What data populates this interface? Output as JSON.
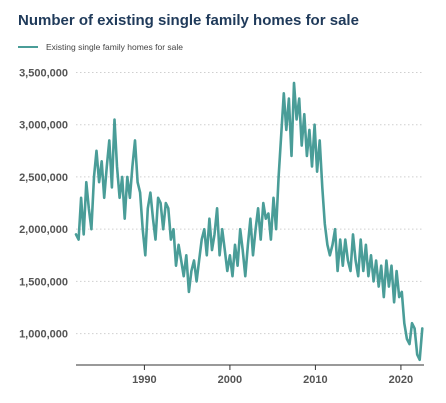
{
  "chart_data": {
    "type": "line",
    "title": "Number of existing single family homes for sale",
    "xlabel": "",
    "ylabel": "",
    "xlim": [
      1982,
      2022.7
    ],
    "ylim": [
      700000,
      3600000
    ],
    "yticks": [
      1000000,
      1500000,
      2000000,
      2500000,
      3000000,
      3500000
    ],
    "ytick_labels": [
      "1,000,000",
      "1,500,000",
      "2,000,000",
      "2,500,000",
      "3,000,000",
      "3,500,000"
    ],
    "xticks": [
      1990,
      2000,
      2010,
      2020
    ],
    "xtick_labels": [
      "1990",
      "2000",
      "2010",
      "2020"
    ],
    "grid": true,
    "legend_position": "top-left",
    "series": [
      {
        "name": "Existing single family homes for sale",
        "color": "#4a9d98",
        "x": [
          1982.0,
          1982.3,
          1982.6,
          1982.9,
          1983.2,
          1983.5,
          1983.8,
          1984.1,
          1984.4,
          1984.7,
          1985.0,
          1985.3,
          1985.6,
          1985.9,
          1986.2,
          1986.5,
          1986.8,
          1987.1,
          1987.4,
          1987.7,
          1988.0,
          1988.3,
          1988.6,
          1988.9,
          1989.2,
          1989.5,
          1989.8,
          1990.1,
          1990.4,
          1990.7,
          1991.0,
          1991.3,
          1991.6,
          1991.9,
          1992.2,
          1992.5,
          1992.8,
          1993.1,
          1993.4,
          1993.7,
          1994.0,
          1994.3,
          1994.6,
          1994.9,
          1995.2,
          1995.5,
          1995.8,
          1996.1,
          1996.4,
          1996.7,
          1997.0,
          1997.3,
          1997.6,
          1997.9,
          1998.2,
          1998.5,
          1998.8,
          1999.1,
          1999.4,
          1999.7,
          2000.0,
          2000.3,
          2000.6,
          2000.9,
          2001.2,
          2001.5,
          2001.8,
          2002.1,
          2002.4,
          2002.7,
          2003.0,
          2003.3,
          2003.6,
          2003.9,
          2004.2,
          2004.5,
          2004.8,
          2005.1,
          2005.4,
          2005.7,
          2006.0,
          2006.3,
          2006.6,
          2006.9,
          2007.2,
          2007.5,
          2007.8,
          2008.1,
          2008.4,
          2008.7,
          2009.0,
          2009.3,
          2009.6,
          2009.9,
          2010.2,
          2010.5,
          2010.8,
          2011.1,
          2011.4,
          2011.7,
          2012.0,
          2012.3,
          2012.6,
          2012.9,
          2013.2,
          2013.5,
          2013.8,
          2014.1,
          2014.4,
          2014.7,
          2015.0,
          2015.3,
          2015.6,
          2015.9,
          2016.2,
          2016.5,
          2016.8,
          2017.1,
          2017.4,
          2017.7,
          2018.0,
          2018.3,
          2018.6,
          2018.9,
          2019.2,
          2019.5,
          2019.8,
          2020.1,
          2020.4,
          2020.7,
          2021.0,
          2021.3,
          2021.6,
          2021.9,
          2022.2,
          2022.5
        ],
        "values": [
          1950000,
          1900000,
          2300000,
          1950000,
          2450000,
          2200000,
          2000000,
          2500000,
          2750000,
          2450000,
          2650000,
          2300000,
          2600000,
          2850000,
          2400000,
          3050000,
          2600000,
          2300000,
          2500000,
          2100000,
          2500000,
          2300000,
          2600000,
          2850000,
          2450000,
          2350000,
          2000000,
          1750000,
          2200000,
          2350000,
          2100000,
          1900000,
          2300000,
          2250000,
          2000000,
          2250000,
          2200000,
          1900000,
          2000000,
          1650000,
          1850000,
          1700000,
          1550000,
          1750000,
          1400000,
          1600000,
          1700000,
          1500000,
          1700000,
          1900000,
          2000000,
          1750000,
          2100000,
          1800000,
          1950000,
          2200000,
          1750000,
          2000000,
          1800000,
          1600000,
          1750000,
          1550000,
          1850000,
          1650000,
          2000000,
          1800000,
          1550000,
          1850000,
          2100000,
          1750000,
          2000000,
          2200000,
          1900000,
          2250000,
          2100000,
          2150000,
          1900000,
          2300000,
          2000000,
          2500000,
          2900000,
          3300000,
          2950000,
          3250000,
          2700000,
          3400000,
          3050000,
          3250000,
          2800000,
          3100000,
          2700000,
          2950000,
          2600000,
          3000000,
          2550000,
          2850000,
          2400000,
          2050000,
          1850000,
          1750000,
          1850000,
          2000000,
          1600000,
          1900000,
          1650000,
          1900000,
          1700000,
          1600000,
          1950000,
          1700000,
          1550000,
          1900000,
          1600000,
          1850000,
          1550000,
          1750000,
          1500000,
          1700000,
          1450000,
          1650000,
          1350000,
          1700000,
          1450000,
          1650000,
          1300000,
          1600000,
          1350000,
          1400000,
          1100000,
          950000,
          900000,
          1100000,
          1050000,
          800000,
          750000,
          1050000
        ]
      }
    ]
  }
}
